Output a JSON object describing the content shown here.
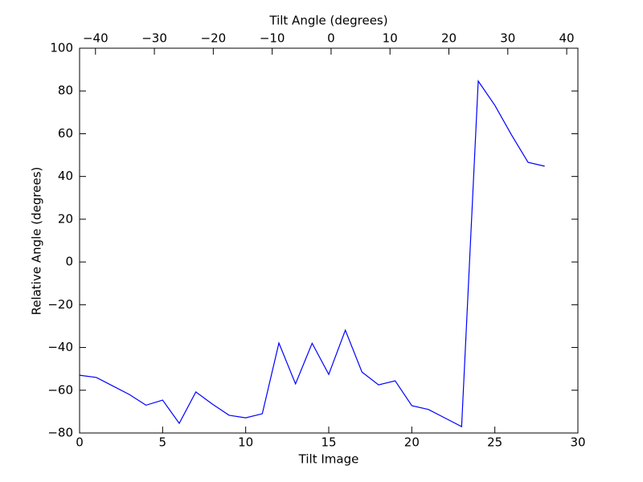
{
  "chart_data": {
    "type": "line",
    "xlabel": "Tilt Image",
    "ylabel": "Relative Angle (degrees)",
    "x2label": "Tilt Angle (degrees)",
    "x": [
      0,
      1,
      2,
      3,
      4,
      5,
      6,
      7,
      8,
      9,
      10,
      11,
      12,
      13,
      14,
      15,
      16,
      17,
      18,
      19,
      20,
      21,
      22,
      23,
      24,
      25,
      26,
      27,
      28
    ],
    "series": [
      {
        "color": "#0000ff",
        "values": [
          -53,
          -54,
          -58,
          -62,
          -67,
          -64.6,
          -75.5,
          -60.8,
          -66.5,
          -71.7,
          -72.9,
          -71,
          -37.9,
          -57,
          -38,
          -52.6,
          -31.9,
          -51.5,
          -57.5,
          -55.6,
          -67.2,
          -69,
          -73,
          -77,
          84.6,
          73.3,
          59.5,
          46.6,
          44.8
        ]
      }
    ],
    "xlim": [
      0,
      30
    ],
    "xticks": [
      0,
      5,
      10,
      15,
      20,
      25,
      30
    ],
    "ylim": [
      -80,
      100
    ],
    "yticks": [
      {
        "value": -80,
        "label": "−80"
      },
      {
        "value": -60,
        "label": "−60"
      },
      {
        "value": -40,
        "label": "−40"
      },
      {
        "value": -20,
        "label": "−20"
      },
      0,
      20,
      40,
      60,
      80,
      100
    ],
    "x2lim": [
      -42.7,
      41.9
    ],
    "x2ticks": [
      {
        "value": -40,
        "label": "−40"
      },
      {
        "value": -30,
        "label": "−30"
      },
      {
        "value": -20,
        "label": "−20"
      },
      {
        "value": -10,
        "label": "−10"
      },
      0,
      10,
      20,
      30,
      40
    ],
    "grid": false
  }
}
